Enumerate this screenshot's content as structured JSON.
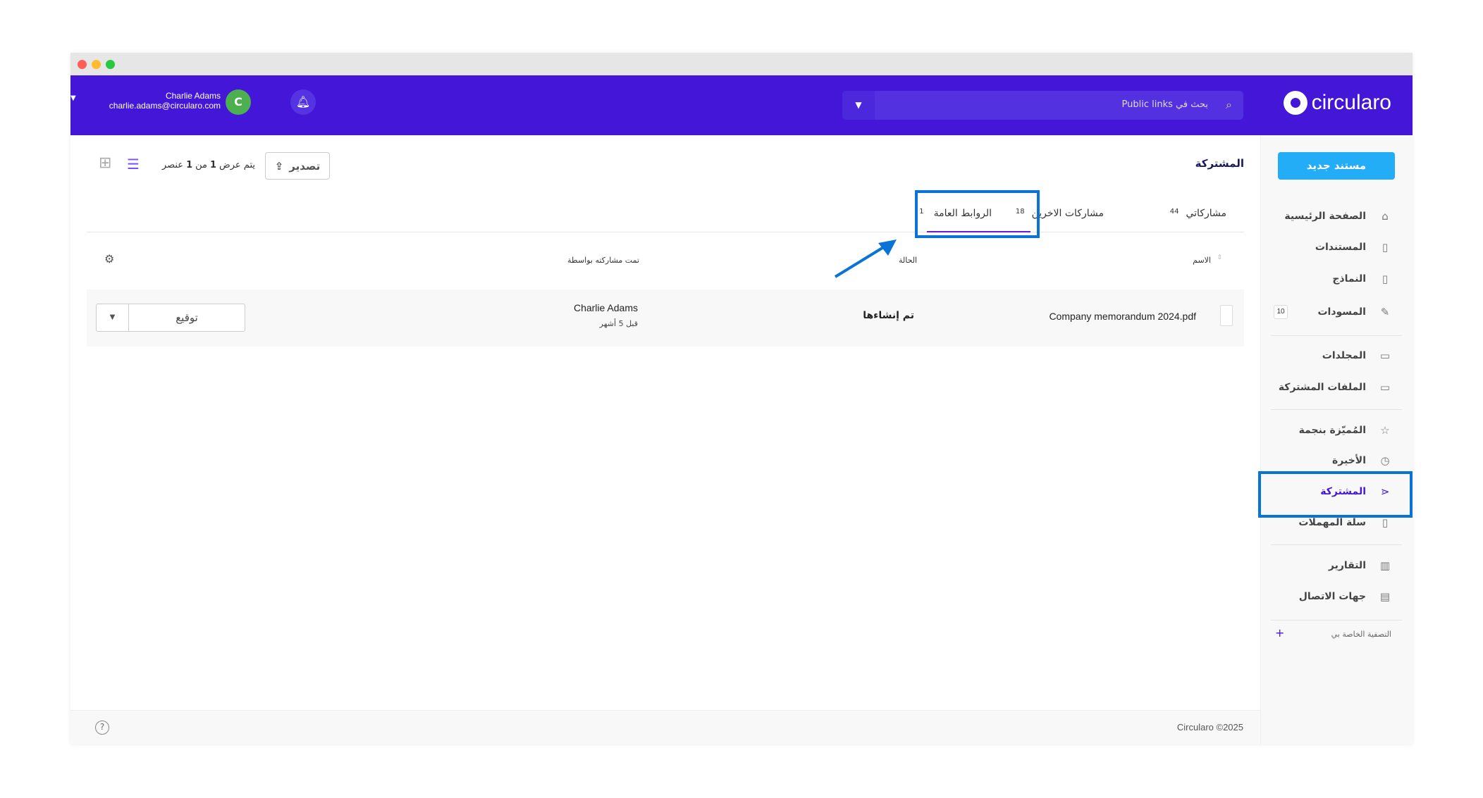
{
  "header": {
    "logo": "circularo",
    "search_placeholder": "بحث في Public links",
    "user_name": "Charlie Adams",
    "user_email": "charlie.adams@circularo.com",
    "avatar_initial": "C"
  },
  "sidebar": {
    "new_document": "مستند جديد",
    "items": [
      {
        "label": "الصفحة الرئيسية",
        "icon": "home-icon",
        "glyph": "⌂"
      },
      {
        "label": "المستندات",
        "icon": "document-icon",
        "glyph": "▯"
      },
      {
        "label": "النماذج",
        "icon": "template-icon",
        "glyph": "▯"
      },
      {
        "label": "المسودات",
        "icon": "pencil-icon",
        "glyph": "✎",
        "badge": "10"
      },
      {
        "label": "المجلدات",
        "icon": "folder-icon",
        "glyph": "▭"
      },
      {
        "label": "الملفات المشتركة",
        "icon": "shared-folder-icon",
        "glyph": "▭"
      },
      {
        "label": "المُميّزة بنجمة",
        "icon": "star-icon",
        "glyph": "☆"
      },
      {
        "label": "الأخيرة",
        "icon": "clock-icon",
        "glyph": "◷"
      },
      {
        "label": "المشتركة",
        "icon": "share-icon",
        "glyph": "⋖",
        "active": true
      },
      {
        "label": "سلة المهملات",
        "icon": "trash-icon",
        "glyph": "▯"
      },
      {
        "label": "التقارير",
        "icon": "chart-icon",
        "glyph": "▥"
      },
      {
        "label": "جهات الاتصال",
        "icon": "contacts-icon",
        "glyph": "▤"
      }
    ],
    "my_filter": "التصفية الخاصة بي"
  },
  "page": {
    "title": "المشتركة",
    "export": "تصدير",
    "count_prefix": "يتم عرض",
    "count_shown": "1",
    "count_of": "من",
    "count_total": "1",
    "count_suffix": "عنصر"
  },
  "tabs": [
    {
      "label": "مشاركاتي",
      "count": "44"
    },
    {
      "label": "مشاركات الاخرين",
      "count": "18"
    },
    {
      "label": "الروابط العامة",
      "count": "1",
      "active": true
    }
  ],
  "table": {
    "columns": [
      "الاسم",
      "الحالة",
      "تمت مشاركته بواسطة"
    ],
    "rows": [
      {
        "name": "Company memorandum 2024.pdf",
        "status": "تم إنشاءها",
        "shared_by": "Charlie Adams",
        "time": "قبل 5 أشهر",
        "action": "توقيع"
      }
    ]
  },
  "footer": {
    "copyright": "Circularo ©2025"
  },
  "colors": {
    "brand": "#4316d8",
    "accent": "#22adf6",
    "highlight": "#0a73d8"
  }
}
